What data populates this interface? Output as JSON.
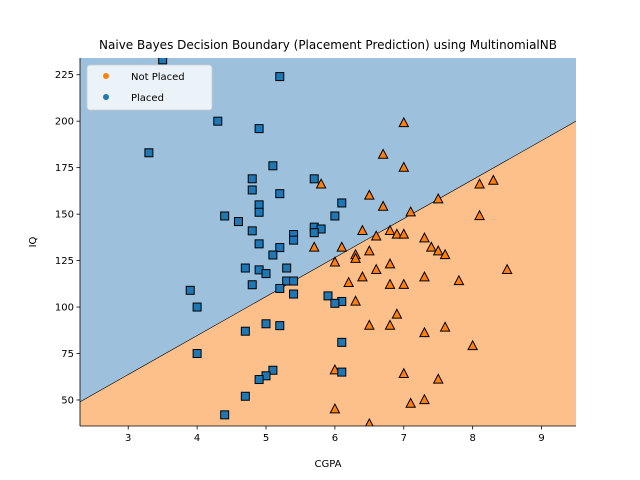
{
  "chart_data": {
    "type": "scatter",
    "title": "Naive Bayes Decision Boundary (Placement Prediction) using MultinomialNB",
    "xlabel": "CGPA",
    "ylabel": "IQ",
    "xlim": [
      2.3,
      9.5
    ],
    "ylim": [
      36,
      234
    ],
    "xticks": [
      "3",
      "4",
      "5",
      "6",
      "7",
      "8",
      "9"
    ],
    "yticks": [
      "50",
      "75",
      "100",
      "125",
      "150",
      "175",
      "200",
      "225"
    ],
    "legend_position": "top-left",
    "grid": false,
    "regions": {
      "boundary_line": [
        [
          2.3,
          49
        ],
        [
          9.5,
          200
        ]
      ],
      "above_label": "Placed",
      "below_label": "Not Placed",
      "above_color": "#9dc1dd",
      "below_color": "#fdc08b"
    },
    "series": [
      {
        "name": "Not Placed",
        "marker": "triangle",
        "color": "#ff7f0e",
        "points": [
          [
            7.0,
            199
          ],
          [
            6.7,
            182
          ],
          [
            7.0,
            175
          ],
          [
            5.8,
            166
          ],
          [
            8.1,
            166
          ],
          [
            8.3,
            168
          ],
          [
            6.5,
            160
          ],
          [
            7.5,
            158
          ],
          [
            6.7,
            154
          ],
          [
            7.1,
            151
          ],
          [
            8.1,
            149
          ],
          [
            6.4,
            141
          ],
          [
            6.8,
            141
          ],
          [
            6.6,
            138
          ],
          [
            6.9,
            139
          ],
          [
            7.0,
            139
          ],
          [
            7.3,
            137
          ],
          [
            5.7,
            132
          ],
          [
            6.1,
            132
          ],
          [
            7.4,
            132
          ],
          [
            6.5,
            130
          ],
          [
            7.5,
            130
          ],
          [
            7.6,
            128
          ],
          [
            6.3,
            128
          ],
          [
            6.3,
            126
          ],
          [
            6.0,
            124
          ],
          [
            6.8,
            123
          ],
          [
            6.6,
            120
          ],
          [
            8.5,
            120
          ],
          [
            6.4,
            116
          ],
          [
            7.3,
            116
          ],
          [
            6.2,
            113
          ],
          [
            7.8,
            114
          ],
          [
            6.8,
            112
          ],
          [
            7.0,
            112
          ],
          [
            6.3,
            103
          ],
          [
            6.9,
            96
          ],
          [
            6.5,
            90
          ],
          [
            6.8,
            90
          ],
          [
            7.6,
            89
          ],
          [
            7.3,
            86
          ],
          [
            8.0,
            79
          ],
          [
            6.0,
            66
          ],
          [
            7.0,
            64
          ],
          [
            7.5,
            61
          ],
          [
            7.3,
            50
          ],
          [
            7.1,
            48
          ],
          [
            6.0,
            45
          ],
          [
            6.5,
            37
          ]
        ]
      },
      {
        "name": "Placed",
        "marker": "square",
        "color": "#1f77b4",
        "points": [
          [
            3.5,
            233
          ],
          [
            5.2,
            224
          ],
          [
            4.3,
            200
          ],
          [
            4.9,
            196
          ],
          [
            3.3,
            183
          ],
          [
            5.1,
            176
          ],
          [
            4.8,
            169
          ],
          [
            5.7,
            169
          ],
          [
            4.8,
            163
          ],
          [
            5.2,
            161
          ],
          [
            6.1,
            156
          ],
          [
            4.9,
            155
          ],
          [
            4.9,
            151
          ],
          [
            4.4,
            149
          ],
          [
            6.0,
            149
          ],
          [
            4.6,
            146
          ],
          [
            5.7,
            143
          ],
          [
            5.8,
            142
          ],
          [
            4.8,
            141
          ],
          [
            5.7,
            140
          ],
          [
            5.4,
            139
          ],
          [
            5.4,
            136
          ],
          [
            4.9,
            134
          ],
          [
            5.2,
            132
          ],
          [
            5.1,
            128
          ],
          [
            4.7,
            121
          ],
          [
            4.9,
            120
          ],
          [
            5.3,
            121
          ],
          [
            5.0,
            118
          ],
          [
            5.3,
            114
          ],
          [
            5.4,
            114
          ],
          [
            4.8,
            112
          ],
          [
            5.2,
            110
          ],
          [
            3.9,
            109
          ],
          [
            5.4,
            107
          ],
          [
            5.9,
            106
          ],
          [
            6.1,
            103
          ],
          [
            6.0,
            102
          ],
          [
            4.0,
            100
          ],
          [
            5.0,
            91
          ],
          [
            5.2,
            90
          ],
          [
            4.7,
            87
          ],
          [
            6.1,
            81
          ],
          [
            4.0,
            75
          ],
          [
            5.1,
            66
          ],
          [
            6.1,
            65
          ],
          [
            5.0,
            63
          ],
          [
            4.9,
            61
          ],
          [
            4.7,
            52
          ],
          [
            4.4,
            42
          ]
        ]
      }
    ]
  }
}
